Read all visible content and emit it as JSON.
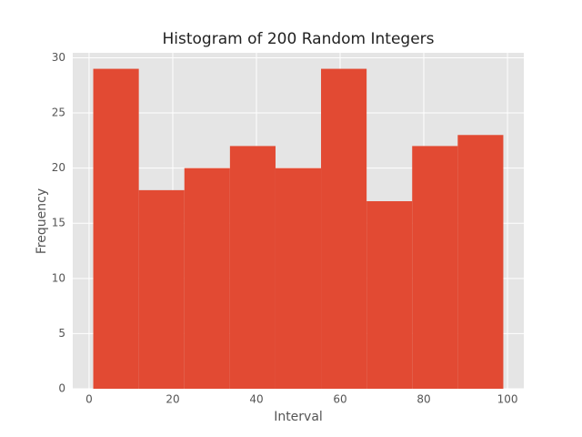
{
  "chart_data": {
    "type": "histogram",
    "title": "Histogram of 200 Random Integers",
    "x_label": "Interval",
    "y_label": "Frequency",
    "bins": [
      1,
      11.89,
      22.78,
      33.67,
      44.56,
      55.44,
      66.33,
      77.22,
      88.11,
      99
    ],
    "values": [
      29,
      18,
      20,
      22,
      20,
      29,
      17,
      22,
      23
    ],
    "color": "#e24a33",
    "xlim": [
      -3.9,
      103.9
    ],
    "ylim": [
      0,
      30.45
    ],
    "xticks": [
      0,
      20,
      40,
      60,
      80,
      100
    ],
    "yticks": [
      0,
      5,
      10,
      15,
      20,
      25,
      30
    ],
    "grid": true
  }
}
